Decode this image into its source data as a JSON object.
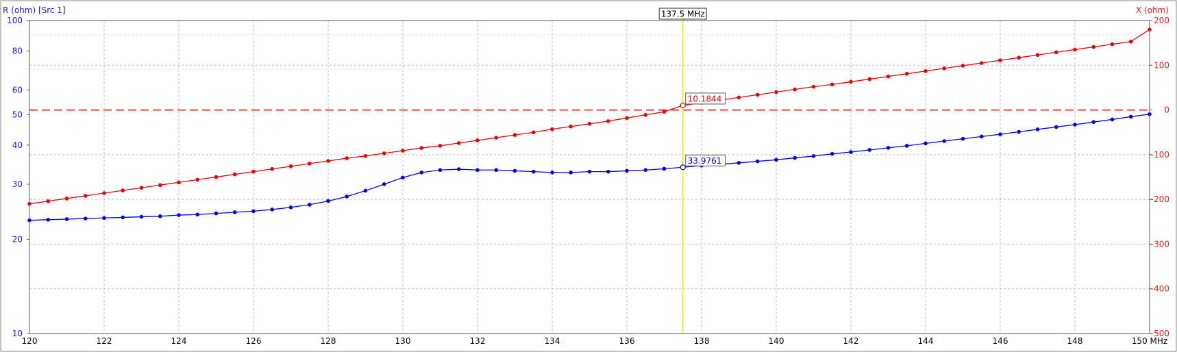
{
  "left_axis_title": "R (ohm) [Src 1]",
  "right_axis_title": "X (ohm)",
  "marker_label": "137.5 MHz",
  "colors": {
    "resistance": "#0000ee",
    "reactance": "#ee0000",
    "marker_line": "#f2f200",
    "grid": "#bdbdbd",
    "frame": "#555555"
  },
  "chart_data": {
    "type": "line",
    "x_unit_label": "MHz",
    "xlim": [
      120,
      150
    ],
    "x_ticks": [
      120,
      122,
      124,
      126,
      128,
      130,
      132,
      134,
      136,
      138,
      140,
      142,
      144,
      146,
      148,
      150
    ],
    "x_tick_labels": [
      "120",
      "122",
      "124",
      "126",
      "128",
      "130",
      "132",
      "134",
      "136",
      "138",
      "140",
      "142",
      "144",
      "146",
      "148",
      "150 MHz"
    ],
    "left_axis": {
      "scale": "log",
      "ylim": [
        10,
        100
      ],
      "ticks": [
        10,
        20,
        30,
        40,
        50,
        60,
        80,
        100
      ],
      "tick_labels": [
        "10",
        "20",
        "30",
        "40",
        "50",
        "60",
        "80",
        "100"
      ]
    },
    "right_axis": {
      "scale": "linear",
      "ylim": [
        -500,
        200
      ],
      "ticks": [
        -500,
        -400,
        -300,
        -200,
        -100,
        0,
        100,
        200
      ],
      "tick_labels": [
        "-500",
        "-400",
        "-300",
        "-200",
        "-100",
        "0",
        "100",
        "200"
      ],
      "reference_line": 0
    },
    "marker": {
      "x": 137.5,
      "r_value": 33.9761,
      "r_label": "33.9761",
      "x_value": 10.1844,
      "x_label": "10.1844"
    },
    "x": [
      120,
      120.5,
      121,
      121.5,
      122,
      122.5,
      123,
      123.5,
      124,
      124.5,
      125,
      125.5,
      126,
      126.5,
      127,
      127.5,
      128,
      128.5,
      129,
      129.5,
      130,
      130.5,
      131,
      131.5,
      132,
      132.5,
      133,
      133.5,
      134,
      134.5,
      135,
      135.5,
      136,
      136.5,
      137,
      137.5,
      138,
      138.5,
      139,
      139.5,
      140,
      140.5,
      141,
      141.5,
      142,
      142.5,
      143,
      143.5,
      144,
      144.5,
      145,
      145.5,
      146,
      146.5,
      147,
      147.5,
      148,
      148.5,
      149,
      149.5,
      150
    ],
    "series": [
      {
        "axis": "left",
        "values": [
          23.0,
          23.1,
          23.2,
          23.3,
          23.4,
          23.5,
          23.6,
          23.7,
          23.9,
          24.0,
          24.2,
          24.4,
          24.6,
          24.9,
          25.3,
          25.8,
          26.5,
          27.4,
          28.6,
          30.0,
          31.5,
          32.7,
          33.3,
          33.5,
          33.3,
          33.3,
          33.1,
          32.9,
          32.7,
          32.7,
          32.9,
          32.9,
          33.1,
          33.3,
          33.6,
          33.98,
          34.4,
          34.7,
          35.1,
          35.5,
          35.9,
          36.4,
          36.9,
          37.5,
          38.0,
          38.6,
          39.2,
          39.8,
          40.5,
          41.2,
          41.9,
          42.6,
          43.3,
          44.1,
          44.9,
          45.7,
          46.5,
          47.4,
          48.3,
          49.3,
          50.2
        ]
      },
      {
        "axis": "right",
        "values": [
          -210,
          -204,
          -198,
          -192,
          -186,
          -180,
          -174,
          -168,
          -162,
          -156,
          -150,
          -144,
          -138,
          -132,
          -126,
          -120,
          -114,
          -108,
          -103,
          -97,
          -91,
          -85,
          -80,
          -74,
          -68,
          -62,
          -56,
          -50,
          -43,
          -37,
          -31,
          -25,
          -18,
          -11,
          -4,
          10.18,
          16,
          22,
          28,
          34,
          40,
          46,
          52,
          57,
          63,
          69,
          75,
          81,
          87,
          93,
          99,
          105,
          111,
          117,
          123,
          129,
          135,
          141,
          147,
          153,
          180
        ]
      }
    ]
  }
}
